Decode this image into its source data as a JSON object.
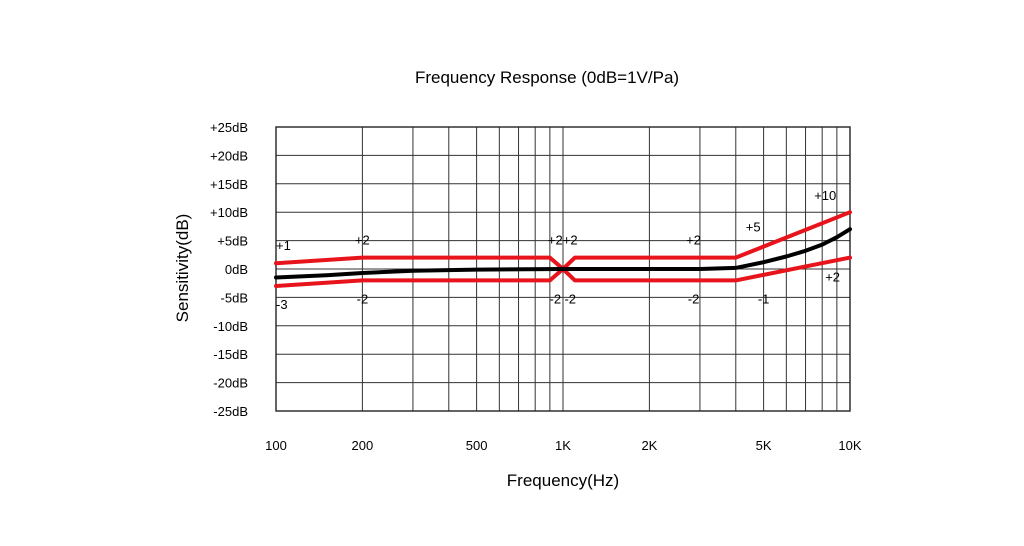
{
  "chart_data": {
    "type": "line",
    "title": "Frequency Response (0dB=1V/Pa)",
    "xlabel": "Frequency(Hz)",
    "ylabel": "Sensitivity(dB)",
    "x_scale": "log",
    "xlim": [
      100,
      10000
    ],
    "ylim": [
      -25,
      25
    ],
    "grid": true,
    "x_ticks": [
      {
        "value": 100,
        "label": "100"
      },
      {
        "value": 200,
        "label": "200"
      },
      {
        "value": 500,
        "label": "500"
      },
      {
        "value": 1000,
        "label": "1K"
      },
      {
        "value": 2000,
        "label": "2K"
      },
      {
        "value": 5000,
        "label": "5K"
      },
      {
        "value": 10000,
        "label": "10K"
      }
    ],
    "x_gridlines": [
      100,
      200,
      300,
      400,
      500,
      600,
      700,
      800,
      900,
      1000,
      2000,
      3000,
      4000,
      5000,
      6000,
      7000,
      8000,
      9000,
      10000
    ],
    "y_ticks": [
      {
        "value": 25,
        "label": "+25dB"
      },
      {
        "value": 20,
        "label": "+20dB"
      },
      {
        "value": 15,
        "label": "+15dB"
      },
      {
        "value": 10,
        "label": "+10dB"
      },
      {
        "value": 5,
        "label": "+5dB"
      },
      {
        "value": 0,
        "label": "0dB"
      },
      {
        "value": -5,
        "label": "-5dB"
      },
      {
        "value": -10,
        "label": "-10dB"
      },
      {
        "value": -15,
        "label": "-15dB"
      },
      {
        "value": -20,
        "label": "-20dB"
      },
      {
        "value": -25,
        "label": "-25dB"
      }
    ],
    "series": [
      {
        "color": "#e8141c",
        "role": "upper-limit",
        "points": [
          [
            100,
            1
          ],
          [
            200,
            2
          ],
          [
            900,
            2
          ],
          [
            1000,
            0
          ],
          [
            1100,
            2
          ],
          [
            4000,
            2
          ],
          [
            10000,
            10
          ]
        ]
      },
      {
        "color": "#e8141c",
        "role": "lower-limit",
        "points": [
          [
            100,
            -3
          ],
          [
            200,
            -2
          ],
          [
            900,
            -2
          ],
          [
            1000,
            0
          ],
          [
            1100,
            -2
          ],
          [
            4000,
            -2
          ],
          [
            10000,
            2
          ]
        ]
      },
      {
        "color": "#000000",
        "role": "response",
        "points": [
          [
            100,
            -1.5
          ],
          [
            150,
            -1.1
          ],
          [
            200,
            -0.7
          ],
          [
            300,
            -0.3
          ],
          [
            500,
            -0.1
          ],
          [
            1000,
            0
          ],
          [
            2000,
            0
          ],
          [
            3000,
            0
          ],
          [
            4000,
            0.2
          ],
          [
            5000,
            1.2
          ],
          [
            6000,
            2.2
          ],
          [
            7000,
            3.2
          ],
          [
            8000,
            4.3
          ],
          [
            9000,
            5.6
          ],
          [
            10000,
            7
          ]
        ]
      }
    ],
    "annotations": [
      {
        "text": "+1",
        "x": 100,
        "y": 4.2,
        "anchor": "start"
      },
      {
        "text": "+2",
        "x": 200,
        "y": 5.2,
        "anchor": "middle"
      },
      {
        "text": "+2",
        "x": 940,
        "y": 5.2,
        "anchor": "middle"
      },
      {
        "text": "+2",
        "x": 1060,
        "y": 5.2,
        "anchor": "middle"
      },
      {
        "text": "+2",
        "x": 2850,
        "y": 5.2,
        "anchor": "middle"
      },
      {
        "text": "+5",
        "x": 4600,
        "y": 7.5,
        "anchor": "middle"
      },
      {
        "text": "+10",
        "x": 8200,
        "y": 13,
        "anchor": "middle"
      },
      {
        "text": "-3",
        "x": 100,
        "y": -6.2,
        "anchor": "start"
      },
      {
        "text": "-2",
        "x": 200,
        "y": -5.2,
        "anchor": "middle"
      },
      {
        "text": "-2",
        "x": 940,
        "y": -5.2,
        "anchor": "middle"
      },
      {
        "text": "-2",
        "x": 1060,
        "y": -5.2,
        "anchor": "middle"
      },
      {
        "text": "-2",
        "x": 2850,
        "y": -5.2,
        "anchor": "middle"
      },
      {
        "text": "-1",
        "x": 5000,
        "y": -5.2,
        "anchor": "middle"
      },
      {
        "text": "+2",
        "x": 8700,
        "y": -1.3,
        "anchor": "middle"
      }
    ]
  }
}
